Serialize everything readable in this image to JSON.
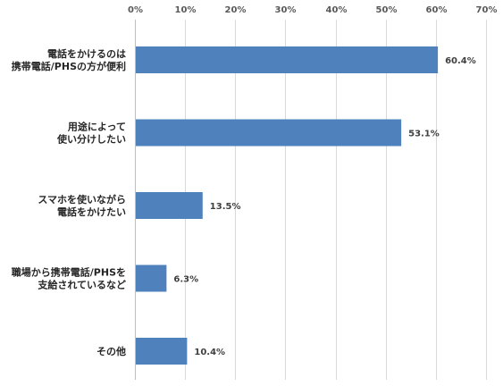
{
  "chart_data": {
    "type": "bar",
    "orientation": "horizontal",
    "categories": [
      [
        "電話をかけるのは",
        "携帯電話/PHSの方が便利"
      ],
      [
        "用途によって",
        "使い分けしたい"
      ],
      [
        "スマホを使いながら",
        "電話をかけたい"
      ],
      [
        "職場から携帯電話/PHSを",
        "支給されているなど"
      ],
      [
        "その他"
      ]
    ],
    "values": [
      60.4,
      53.1,
      13.5,
      6.3,
      10.4
    ],
    "value_labels": [
      "60.4%",
      "53.1%",
      "13.5%",
      "6.3%",
      "10.4%"
    ],
    "x_ticks": [
      "0%",
      "10%",
      "20%",
      "30%",
      "40%",
      "50%",
      "60%",
      "70%"
    ],
    "xlim": [
      0,
      70
    ],
    "x_axis_position": "top",
    "grid": true,
    "legend": "none",
    "colors": {
      "bar": "#4f81bd"
    }
  }
}
